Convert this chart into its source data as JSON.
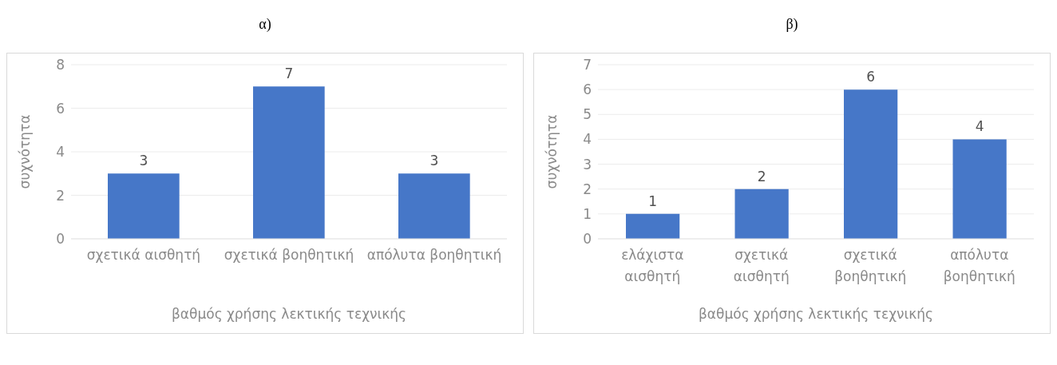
{
  "chart_data": [
    {
      "type": "bar",
      "title": "α)",
      "xlabel": "βαθμός χρήσης λεκτικής τεχνικής",
      "ylabel": "συχνότητα",
      "categories": [
        "σχετικά αισθητή",
        "σχετικά βοηθητική",
        "απόλυτα βοηθητική"
      ],
      "values": [
        3,
        7,
        3
      ],
      "color": "#4677c8",
      "ylim": [
        0,
        8
      ],
      "yticks": [
        0,
        2,
        4,
        6,
        8
      ],
      "grid": "y",
      "data_labels": true
    },
    {
      "type": "bar",
      "title": "β)",
      "xlabel": "βαθμός χρήσης λεκτικής τεχνικής",
      "ylabel": "συχνότητα",
      "categories": [
        "ελάχιστα αισθητή",
        "σχετικά αισθητή",
        "σχετικά βοηθητική",
        "απόλυτα βοηθητική"
      ],
      "values": [
        1,
        2,
        6,
        4
      ],
      "color": "#4677c8",
      "ylim": [
        0,
        7
      ],
      "yticks": [
        0,
        1,
        2,
        3,
        4,
        5,
        6,
        7
      ],
      "grid": "y",
      "data_labels": true
    }
  ]
}
